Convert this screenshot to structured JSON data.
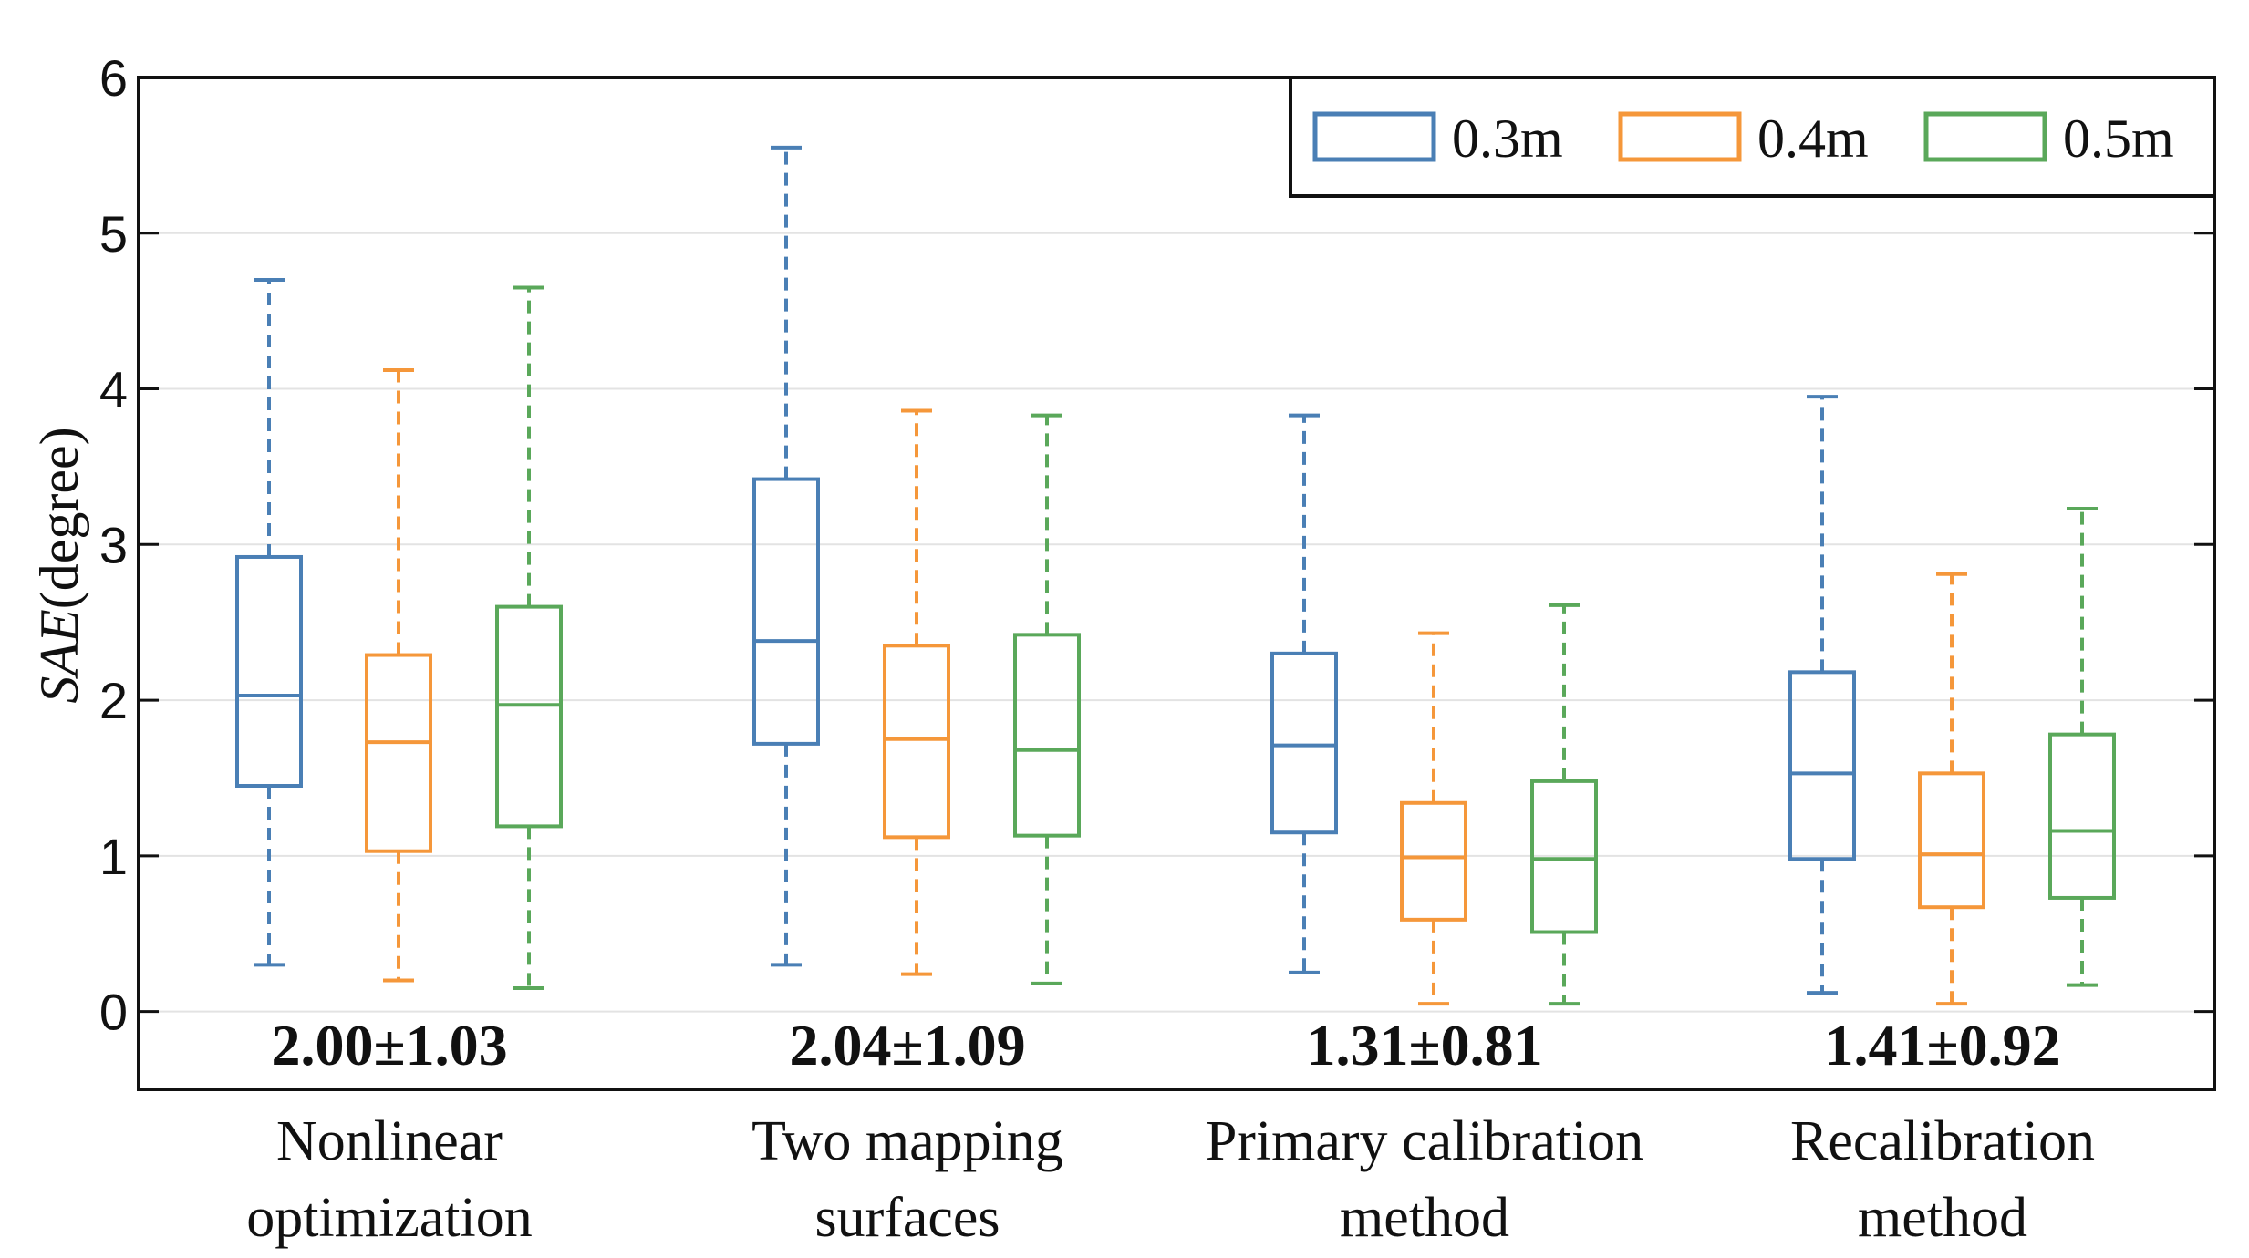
{
  "chart_data": {
    "type": "box",
    "ylabel_italic": "SAE",
    "ylabel_rest": "(degree)",
    "ylim": [
      -0.5,
      6
    ],
    "yticks": [
      "0",
      "1",
      "2",
      "3",
      "4",
      "5",
      "6"
    ],
    "grid": true,
    "legend_position": "top-right",
    "categories": [
      {
        "line1": "Nonlinear",
        "line2": "optimization",
        "annotation": "2.00±1.03"
      },
      {
        "line1": "Two mapping",
        "line2": "surfaces",
        "annotation": "2.04±1.09"
      },
      {
        "line1": "Primary calibration",
        "line2": "method",
        "annotation": "1.31±0.81"
      },
      {
        "line1": "Recalibration",
        "line2": "method",
        "annotation": "1.41±0.92"
      }
    ],
    "series": [
      {
        "name": "0.3m",
        "color": "#4a7fb5",
        "boxes": [
          {
            "min": 0.3,
            "q1": 1.45,
            "median": 2.03,
            "q3": 2.92,
            "max": 4.7
          },
          {
            "min": 0.3,
            "q1": 1.72,
            "median": 2.38,
            "q3": 3.42,
            "max": 5.55
          },
          {
            "min": 0.25,
            "q1": 1.15,
            "median": 1.71,
            "q3": 2.3,
            "max": 3.83
          },
          {
            "min": 0.12,
            "q1": 0.98,
            "median": 1.53,
            "q3": 2.18,
            "max": 3.95
          }
        ]
      },
      {
        "name": "0.4m",
        "color": "#f5973a",
        "boxes": [
          {
            "min": 0.2,
            "q1": 1.03,
            "median": 1.73,
            "q3": 2.29,
            "max": 4.12
          },
          {
            "min": 0.24,
            "q1": 1.12,
            "median": 1.75,
            "q3": 2.35,
            "max": 3.86
          },
          {
            "min": 0.05,
            "q1": 0.59,
            "median": 0.99,
            "q3": 1.34,
            "max": 2.43
          },
          {
            "min": 0.05,
            "q1": 0.67,
            "median": 1.01,
            "q3": 1.53,
            "max": 2.81
          }
        ]
      },
      {
        "name": "0.5m",
        "color": "#5aa85a",
        "boxes": [
          {
            "min": 0.15,
            "q1": 1.19,
            "median": 1.97,
            "q3": 2.6,
            "max": 4.65
          },
          {
            "min": 0.18,
            "q1": 1.13,
            "median": 1.68,
            "q3": 2.42,
            "max": 3.83
          },
          {
            "min": 0.05,
            "q1": 0.51,
            "median": 0.98,
            "q3": 1.48,
            "max": 2.61
          },
          {
            "min": 0.17,
            "q1": 0.73,
            "median": 1.16,
            "q3": 1.78,
            "max": 3.23
          }
        ]
      }
    ]
  }
}
